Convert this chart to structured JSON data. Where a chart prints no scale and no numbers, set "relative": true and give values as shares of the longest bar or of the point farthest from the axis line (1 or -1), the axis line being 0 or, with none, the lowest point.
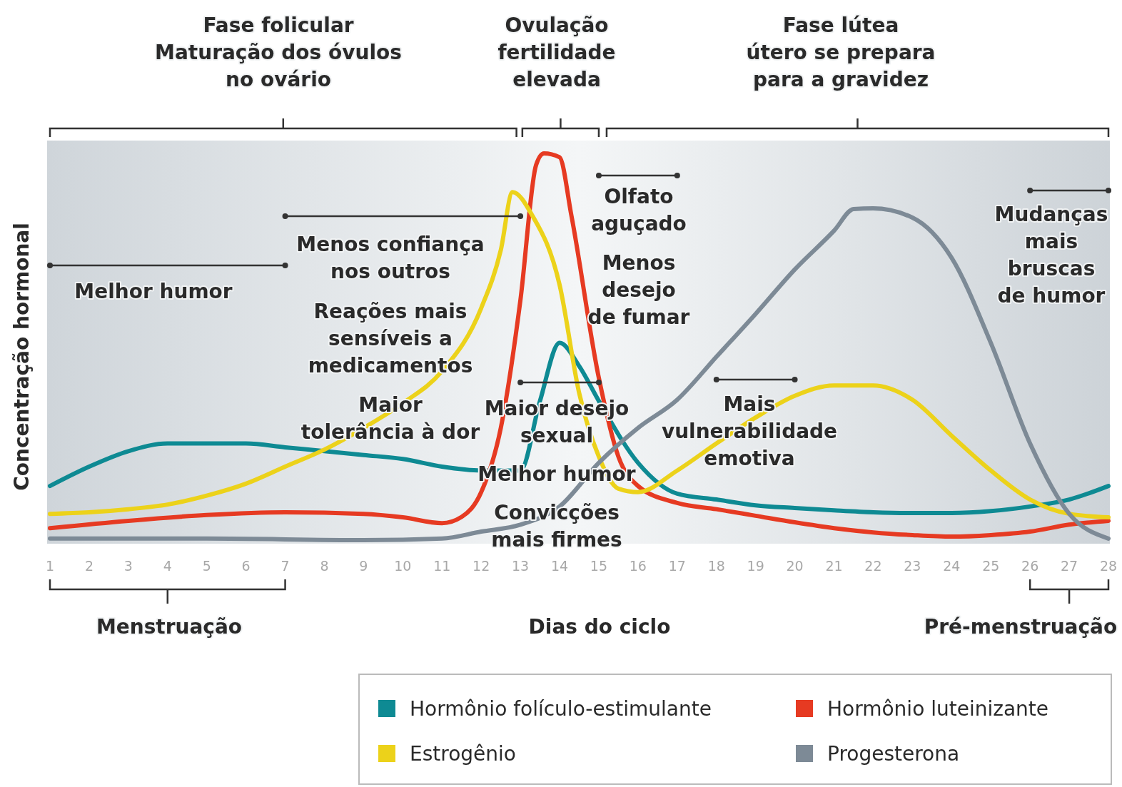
{
  "chart_data": {
    "type": "line",
    "relative": true,
    "xlabel": "Dias do ciclo",
    "ylabel": "Concentração hormonal",
    "xlim": [
      1,
      28
    ],
    "xticks": [
      1,
      2,
      3,
      4,
      5,
      6,
      7,
      8,
      9,
      10,
      11,
      12,
      13,
      14,
      15,
      16,
      17,
      18,
      19,
      20,
      21,
      22,
      23,
      24,
      25,
      26,
      27,
      28
    ],
    "legend": "bottom right",
    "marker": "none",
    "line_style": "solid",
    "series": [
      {
        "name": "Hormônio folículo-estimulante",
        "color": "#0e8a93",
        "x": [
          1,
          2,
          3,
          4,
          5,
          6,
          7,
          8,
          9,
          10,
          11,
          12,
          13,
          13.5,
          14,
          14.5,
          15,
          16,
          17,
          18,
          19,
          20,
          21,
          22,
          23,
          24,
          25,
          26,
          27,
          28
        ],
        "values": [
          0.14,
          0.19,
          0.23,
          0.25,
          0.25,
          0.25,
          0.24,
          0.23,
          0.22,
          0.21,
          0.19,
          0.18,
          0.18,
          0.36,
          0.51,
          0.45,
          0.36,
          0.2,
          0.12,
          0.105,
          0.09,
          0.083,
          0.077,
          0.072,
          0.07,
          0.07,
          0.075,
          0.087,
          0.105,
          0.14
        ]
      },
      {
        "name": "Hormônio luteinizante",
        "color": "#e63a22",
        "x": [
          1,
          3,
          5,
          7,
          9,
          10,
          11,
          11.5,
          12,
          12.5,
          13,
          13.4,
          13.6,
          14,
          14.3,
          15,
          15.5,
          16,
          17,
          18,
          19,
          20,
          21,
          22,
          23,
          24,
          25,
          26,
          27,
          28
        ],
        "values": [
          0.031,
          0.05,
          0.065,
          0.072,
          0.068,
          0.059,
          0.044,
          0.06,
          0.124,
          0.29,
          0.62,
          0.97,
          1,
          0.99,
          0.84,
          0.42,
          0.216,
          0.14,
          0.096,
          0.08,
          0.063,
          0.046,
          0.031,
          0.02,
          0.013,
          0.009,
          0.013,
          0.022,
          0.04,
          0.05
        ]
      },
      {
        "name": "Estrogênio",
        "color": "#ecd21a",
        "x": [
          1,
          2,
          3,
          4,
          5,
          6,
          7,
          8,
          9,
          10,
          11,
          12,
          12.5,
          12.8,
          13.3,
          14,
          14.5,
          15,
          15.5,
          16,
          17,
          18,
          19,
          20,
          21,
          22,
          23,
          24,
          25,
          26,
          27,
          28
        ],
        "values": [
          0.068,
          0.072,
          0.08,
          0.092,
          0.115,
          0.146,
          0.19,
          0.234,
          0.29,
          0.354,
          0.437,
          0.6,
          0.75,
          0.9,
          0.84,
          0.66,
          0.38,
          0.216,
          0.133,
          0.124,
          0.18,
          0.25,
          0.317,
          0.373,
          0.4,
          0.4,
          0.363,
          0.27,
          0.18,
          0.105,
          0.068,
          0.059
        ]
      },
      {
        "name": "Progesterona",
        "color": "#7d8a96",
        "x": [
          1,
          5,
          9,
          11,
          12,
          13,
          14,
          15,
          16,
          17,
          18,
          19,
          20,
          21,
          21.5,
          22,
          23,
          24,
          25,
          26,
          27,
          28
        ],
        "values": [
          0.004,
          0.004,
          0,
          0.004,
          0.022,
          0.04,
          0.087,
          0.2,
          0.29,
          0.363,
          0.474,
          0.585,
          0.7,
          0.8,
          0.856,
          0.858,
          0.834,
          0.73,
          0.51,
          0.25,
          0.068,
          0.004
        ]
      }
    ],
    "annotations": [
      "Fase folicular\nMaturação dos óvulos\nno ovário",
      "Ovulação\nfertilidade\nelevada",
      "Fase lútea\nútero se prepara\npara a gravidez",
      "Melhor humor",
      "Menos confiança\nnos outros",
      "Reações mais\nsensíveis a\nmedicamentos",
      "Maior\ntolerância à dor",
      "Olfato\naguçado",
      "Menos\ndesejo\nde fumar",
      "Maior desejo\nsexual",
      "Melhor humor",
      "Convicções\nmais firmes",
      "Mais\nvulnerabilidade\nemotiva",
      "Mudanças\nmais\nbruscas\nde humor",
      "Menstruação",
      "Pré-menstruação"
    ]
  }
}
